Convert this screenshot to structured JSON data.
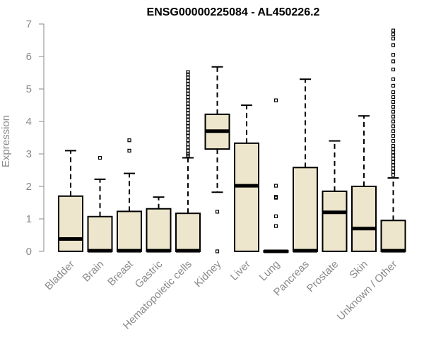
{
  "chart_data": {
    "type": "boxplot",
    "title": "ENSG00000225084 - AL450226.2",
    "ylabel": "Expression",
    "xlabel": "",
    "ylim": [
      0,
      7
    ],
    "yticks": [
      0,
      1,
      2,
      3,
      4,
      5,
      6,
      7
    ],
    "grid": false,
    "box_color": "#ede6cc",
    "line_color": "#000000",
    "axis_color": "#8a8a8a",
    "categories": [
      "Bladder",
      "Brain",
      "Breast",
      "Gastric",
      "Hematopoietic cells",
      "Kidney",
      "Liver",
      "Lung",
      "Pancreas",
      "Prostate",
      "Skin",
      "Unknown / Other"
    ],
    "boxes": [
      {
        "min": 0,
        "q1": 0,
        "median": 0.38,
        "q3": 1.7,
        "max": 3.1,
        "outliers": []
      },
      {
        "min": 0,
        "q1": 0,
        "median": 0.02,
        "q3": 1.07,
        "max": 2.22,
        "outliers": [
          2.88
        ]
      },
      {
        "min": 0,
        "q1": 0,
        "median": 0.02,
        "q3": 1.23,
        "max": 2.4,
        "outliers": [
          3.1,
          3.42
        ]
      },
      {
        "min": 0,
        "q1": 0,
        "median": 0.02,
        "q3": 1.31,
        "max": 1.67,
        "outliers": []
      },
      {
        "min": 0,
        "q1": 0,
        "median": 0.02,
        "q3": 1.17,
        "max": 2.88,
        "outliers": [
          2.95,
          3.0,
          3.1,
          3.2,
          3.3,
          3.42,
          3.55,
          3.65,
          3.75,
          3.85,
          3.95,
          4.05,
          4.15,
          4.25,
          4.35,
          4.45,
          4.55,
          4.65,
          4.75,
          4.85,
          4.95,
          5.05,
          5.15,
          5.25,
          5.35,
          5.45,
          5.52
        ]
      },
      {
        "min": 1.82,
        "q1": 3.15,
        "median": 3.7,
        "q3": 4.22,
        "max": 5.68,
        "outliers": [
          1.22,
          0.0
        ]
      },
      {
        "min": 0,
        "q1": 0,
        "median": 2.02,
        "q3": 3.33,
        "max": 4.5,
        "outliers": []
      },
      {
        "min": 0,
        "q1": 0,
        "median": 0.0,
        "q3": 0.02,
        "max": 0.02,
        "outliers": [
          0.78,
          1.08,
          1.65,
          1.68,
          2.02,
          4.65
        ]
      },
      {
        "min": 0,
        "q1": 0,
        "median": 0.02,
        "q3": 2.58,
        "max": 5.3,
        "outliers": []
      },
      {
        "min": 0,
        "q1": 0,
        "median": 1.2,
        "q3": 1.85,
        "max": 3.4,
        "outliers": []
      },
      {
        "min": 0,
        "q1": 0,
        "median": 0.7,
        "q3": 2.0,
        "max": 4.17,
        "outliers": []
      },
      {
        "min": 0,
        "q1": 0,
        "median": 0.02,
        "q3": 0.95,
        "max": 2.26,
        "outliers": [
          2.35,
          2.45,
          2.55,
          2.65,
          2.75,
          2.85,
          2.95,
          3.05,
          3.15,
          3.25,
          3.4,
          3.55,
          3.7,
          3.85,
          4.0,
          4.15,
          4.3,
          4.45,
          4.6,
          4.75,
          4.9,
          5.1,
          5.3,
          5.6,
          5.85,
          6.05,
          6.35,
          6.55,
          6.68,
          6.8
        ]
      }
    ]
  }
}
